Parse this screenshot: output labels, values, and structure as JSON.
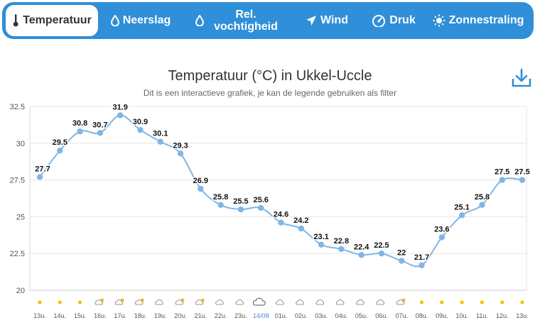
{
  "tabs": [
    {
      "label": "Temperatuur",
      "icon": "thermometer-icon",
      "active": true
    },
    {
      "label": "Neerslag",
      "icon": "droplet-icon"
    },
    {
      "label_line1": "Rel.",
      "label_line2": "vochtigheid",
      "icon": "droplet-outline-icon"
    },
    {
      "label": "Wind",
      "icon": "wind-arrow-icon"
    },
    {
      "label": "Druk",
      "icon": "gauge-icon"
    },
    {
      "label": "Zonnestraling",
      "icon": "sun-icon"
    }
  ],
  "download_icon": "download-icon",
  "colors": {
    "accent": "#2f8fd8",
    "line": "#7fb6e6",
    "point": "#7fb6e6",
    "sun": "#f2c200",
    "date_label": "#4a90d9"
  },
  "chart_data": {
    "type": "line",
    "title": "Temperatuur (°C) in Ukkel-Uccle",
    "subtitle": "Dit is een interactieve grafiek, je kan de legende gebruiken als filter",
    "x": [
      "13u.",
      "14u.",
      "15u.",
      "16u.",
      "17u.",
      "18u.",
      "19u.",
      "20u.",
      "21u.",
      "22u.",
      "23u.",
      "14/08",
      "01u.",
      "02u.",
      "03u.",
      "04u.",
      "05u.",
      "06u.",
      "07u.",
      "08u.",
      "09u.",
      "10u.",
      "11u.",
      "12u.",
      "13u."
    ],
    "series": [
      {
        "values": [
          27.7,
          29.5,
          30.8,
          30.7,
          31.9,
          30.9,
          30.1,
          29.3,
          26.9,
          25.8,
          25.5,
          25.6,
          24.6,
          24.2,
          23.1,
          22.8,
          22.4,
          22.5,
          22,
          21.7,
          23.6,
          25.1,
          25.8,
          27.5,
          27.5
        ]
      }
    ],
    "data_labels": [
      "27.7",
      "29.5",
      "30.8",
      "30.7",
      "31.9",
      "30.9",
      "30.1",
      "29.3",
      "26.9",
      "25.8",
      "25.5",
      "25.6",
      "24.6",
      "24.2",
      "23.1",
      "22.8",
      "22.4",
      "22.5",
      "22",
      "21.7",
      "23.6",
      "25.1",
      "25.8",
      "27.5",
      "27.5"
    ],
    "y_ticks": [
      "20",
      "22.5",
      "25",
      "27.5",
      "30",
      "32.5"
    ],
    "ylim": [
      20,
      32.5
    ],
    "grid": true,
    "weather_icons": [
      "sun",
      "sun",
      "sun",
      "sun-cloud",
      "sun-cloud",
      "sun-cloud",
      "cloud",
      "sun-cloud",
      "sun-cloud",
      "cloud",
      "cloud",
      "cloud-large",
      "cloud",
      "cloud",
      "cloud",
      "cloud",
      "cloud",
      "cloud",
      "sun-cloud",
      "sun",
      "sun",
      "sun",
      "sun",
      "sun",
      "sun"
    ]
  }
}
